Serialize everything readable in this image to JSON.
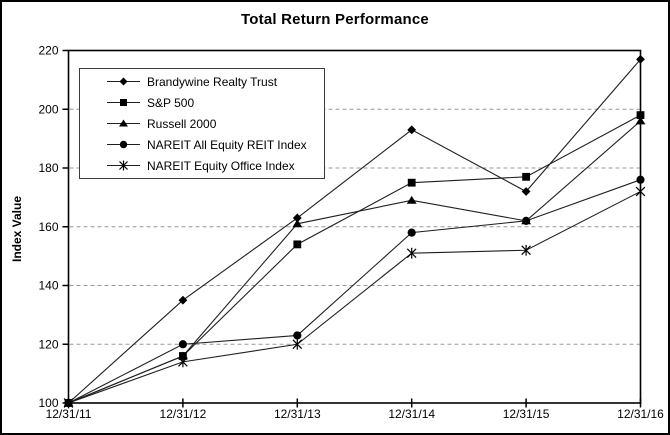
{
  "chart_data": {
    "type": "line",
    "title": "Total Return Performance",
    "ylabel": "Index Value",
    "xlabel": "",
    "categories": [
      "12/31/11",
      "12/31/12",
      "12/31/13",
      "12/31/14",
      "12/31/15",
      "12/31/16"
    ],
    "series": [
      {
        "name": "Brandywine Realty Trust",
        "marker": "diamond",
        "values": [
          100,
          135,
          163,
          193,
          172,
          217
        ]
      },
      {
        "name": "S&P 500",
        "marker": "square",
        "values": [
          100,
          116,
          154,
          175,
          177,
          198
        ]
      },
      {
        "name": "Russell 2000",
        "marker": "triangle",
        "values": [
          100,
          116,
          161,
          169,
          162,
          196
        ]
      },
      {
        "name": "NAREIT All Equity REIT Index",
        "marker": "circle",
        "values": [
          100,
          120,
          123,
          158,
          162,
          176
        ]
      },
      {
        "name": "NAREIT Equity Office Index",
        "marker": "star",
        "values": [
          100,
          114,
          120,
          151,
          152,
          172
        ]
      }
    ],
    "axis": {
      "y_ticks": [
        100,
        120,
        140,
        160,
        180,
        200,
        220
      ],
      "ylim": [
        100,
        220
      ],
      "gridlines": [
        120,
        140,
        160,
        180,
        200
      ],
      "grid_style": "dashed",
      "legend_position": "top-left-inside"
    },
    "colors": {
      "line": "#1f1f1f",
      "marker": "#000000",
      "grid": "#999999",
      "axis": "#000000",
      "text": "#000000",
      "background": "#ffffff"
    }
  }
}
